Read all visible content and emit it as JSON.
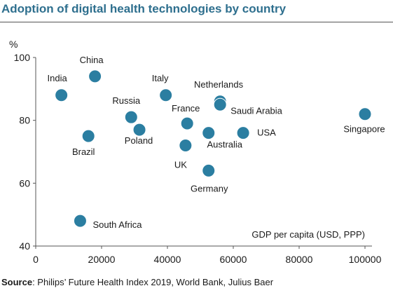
{
  "title": "Adoption of digital health technologies by country",
  "source": {
    "label": "Source",
    "text": ": Philips’ Future Health Index 2019, World Bank, Julius Baer"
  },
  "colors": {
    "title": "#2e6f8e",
    "marker": "#2b7ea1",
    "axis": "#555555"
  },
  "chart_data": {
    "type": "scatter",
    "title": "Adoption of digital health technologies by country",
    "xlabel": "GDP per capita (USD, PPP)",
    "ylabel": "%",
    "xlim": [
      0,
      100000
    ],
    "ylim": [
      40,
      100
    ],
    "xticks": [
      0,
      20000,
      40000,
      60000,
      80000,
      100000
    ],
    "yticks": [
      40,
      60,
      80,
      100
    ],
    "grid": false,
    "legend": "none",
    "points": [
      {
        "label": "India",
        "x": 7800,
        "y": 88
      },
      {
        "label": "China",
        "x": 18000,
        "y": 94
      },
      {
        "label": "Brazil",
        "x": 16000,
        "y": 75
      },
      {
        "label": "Russia",
        "x": 29000,
        "y": 81
      },
      {
        "label": "Poland",
        "x": 31500,
        "y": 77
      },
      {
        "label": "Italy",
        "x": 39500,
        "y": 88
      },
      {
        "label": "France",
        "x": 46000,
        "y": 79
      },
      {
        "label": "UK",
        "x": 45500,
        "y": 72
      },
      {
        "label": "Australia",
        "x": 52500,
        "y": 76
      },
      {
        "label": "Germany",
        "x": 52500,
        "y": 64
      },
      {
        "label": "Netherlands",
        "x": 56000,
        "y": 86
      },
      {
        "label": "Saudi Arabia",
        "x": 56000,
        "y": 85
      },
      {
        "label": "USA",
        "x": 63000,
        "y": 76
      },
      {
        "label": "Singapore",
        "x": 100000,
        "y": 82
      },
      {
        "label": "South Africa",
        "x": 13500,
        "y": 48
      }
    ]
  }
}
